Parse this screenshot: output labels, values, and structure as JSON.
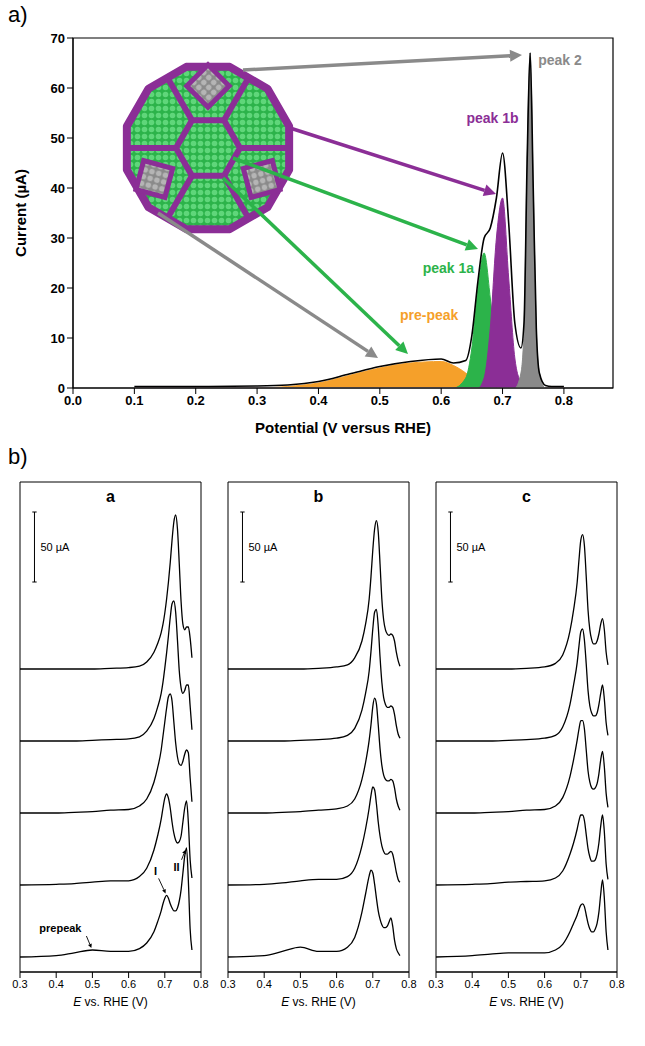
{
  "group_label": "b)",
  "chart_data": [
    {
      "type": "area",
      "panel_label": "a)",
      "x_label": "Potential (V versus RHE)",
      "y_label": "Current (µA)",
      "xlim": [
        0,
        0.88
      ],
      "xticks": [
        {
          "value": 0,
          "label": "0.0"
        },
        0.1,
        0.2,
        0.3,
        0.4,
        0.5,
        0.6,
        0.7,
        0.8
      ],
      "ylim": [
        0,
        70
      ],
      "yticks": [
        0,
        10,
        20,
        30,
        40,
        50,
        60,
        70
      ],
      "x": [
        0.1,
        0.2,
        0.3,
        0.35,
        0.4,
        0.45,
        0.5,
        0.55,
        0.6,
        0.62,
        0.64,
        0.65,
        0.66,
        0.67,
        0.68,
        0.69,
        0.7,
        0.71,
        0.72,
        0.73,
        0.735,
        0.74,
        0.745,
        0.75,
        0.755,
        0.76,
        0.77,
        0.78,
        0.8
      ],
      "series": [
        {
          "name": "pre-peak",
          "type": "area",
          "color": "#f5a02a",
          "values": [
            0,
            0,
            0,
            0.3,
            1,
            2.5,
            4,
            5,
            5.3,
            4.5,
            3,
            2,
            1,
            0.5,
            0,
            0,
            0,
            0,
            0,
            0,
            0,
            0,
            0,
            0,
            0,
            0,
            0,
            0,
            0
          ]
        },
        {
          "name": "peak 1a",
          "type": "area",
          "color": "#2cb34a",
          "values": [
            0,
            0,
            0,
            0,
            0,
            0,
            0,
            0,
            0,
            0,
            2,
            8,
            20,
            27,
            18,
            6,
            1,
            0,
            0,
            0,
            0,
            0,
            0,
            0,
            0,
            0,
            0,
            0,
            0
          ]
        },
        {
          "name": "peak 1b",
          "type": "area",
          "color": "#8b2e96",
          "values": [
            0,
            0,
            0,
            0,
            0,
            0,
            0,
            0,
            0,
            0,
            0,
            0,
            0,
            2,
            12,
            30,
            38,
            22,
            6,
            1,
            0,
            0,
            0,
            0,
            0,
            0,
            0,
            0,
            0
          ]
        },
        {
          "name": "peak 2",
          "type": "area",
          "color": "#8a8a8a",
          "values": [
            0,
            0,
            0,
            0,
            0,
            0,
            0,
            0,
            0,
            0,
            0,
            0,
            0,
            0,
            0,
            0,
            0,
            0,
            0,
            3,
            12,
            45,
            67,
            40,
            12,
            3,
            0,
            0,
            0
          ]
        },
        {
          "type": "line",
          "color": "#000000",
          "values": [
            0.3,
            0.3,
            0.4,
            0.6,
            1.3,
            2.8,
            4.3,
            5.3,
            5.8,
            5,
            5.5,
            10.5,
            21.5,
            30,
            32,
            38,
            47,
            33,
            13,
            8,
            13,
            45,
            67,
            40,
            12,
            3,
            0.5,
            0.3,
            0.3
          ]
        }
      ]
    },
    {
      "type": "line",
      "panel_label": "a",
      "x_label": "E vs. RHE (V)",
      "tick_labels": "x",
      "xlim": [
        0.3,
        0.8
      ],
      "xticks": [
        0.3,
        0.4,
        0.5,
        0.6,
        0.7,
        0.8
      ],
      "scale_bar": {
        "value": 50,
        "label": "50 µA"
      },
      "annotations": [
        {
          "text": "prepeak",
          "x": 0.5,
          "y": 5
        },
        {
          "text": "I",
          "x": 0.705,
          "y": 44
        },
        {
          "text": "II",
          "x": 0.76,
          "y": 78
        }
      ],
      "x": [
        0.3,
        0.4,
        0.45,
        0.5,
        0.55,
        0.6,
        0.63,
        0.65,
        0.67,
        0.68,
        0.69,
        0.695,
        0.7,
        0.705,
        0.71,
        0.715,
        0.72,
        0.725,
        0.73,
        0.735,
        0.74,
        0.745,
        0.75,
        0.755,
        0.76,
        0.765,
        0.77,
        0.775
      ],
      "series": [
        {
          "color": "#000000",
          "values": [
            0,
            1,
            3,
            5,
            4,
            4,
            6,
            10,
            18,
            25,
            33,
            38,
            42,
            44,
            42,
            38,
            35,
            33,
            33,
            35,
            40,
            48,
            60,
            72,
            78,
            55,
            20,
            5
          ]
        },
        {
          "color": "#000000",
          "values": [
            0,
            0.5,
            1,
            2,
            3,
            3,
            6,
            12,
            25,
            35,
            47,
            55,
            62,
            65,
            62,
            55,
            45,
            37,
            32,
            30,
            31,
            35,
            45,
            55,
            60,
            45,
            18,
            5
          ]
        },
        {
          "color": "#000000",
          "values": [
            0,
            0,
            0.5,
            1,
            2,
            2.5,
            5,
            10,
            22,
            32,
            45,
            55,
            65,
            75,
            83,
            85,
            80,
            65,
            50,
            40,
            35,
            34,
            37,
            42,
            45,
            43,
            25,
            8
          ]
        },
        {
          "color": "#000000",
          "values": [
            0,
            0,
            0,
            0.5,
            1,
            1.5,
            3,
            7,
            16,
            24,
            34,
            42,
            52,
            63,
            75,
            88,
            98,
            100,
            92,
            72,
            50,
            38,
            34,
            36,
            40,
            40,
            25,
            8
          ]
        },
        {
          "color": "#000000",
          "values": [
            0,
            0,
            0,
            0,
            0.5,
            1,
            2,
            5,
            12,
            18,
            26,
            32,
            40,
            50,
            62,
            76,
            92,
            105,
            110,
            100,
            75,
            48,
            32,
            28,
            30,
            30,
            22,
            8
          ]
        }
      ]
    },
    {
      "type": "line",
      "panel_label": "b",
      "x_label": "E vs. RHE (V)",
      "tick_labels": "x",
      "xlim": [
        0.3,
        0.8
      ],
      "xticks": [
        0.3,
        0.4,
        0.5,
        0.6,
        0.7,
        0.8
      ],
      "scale_bar": {
        "value": 50,
        "label": "50 µA"
      },
      "x": [
        0.3,
        0.4,
        0.45,
        0.5,
        0.55,
        0.6,
        0.63,
        0.65,
        0.67,
        0.68,
        0.69,
        0.695,
        0.7,
        0.705,
        0.71,
        0.715,
        0.72,
        0.725,
        0.73,
        0.735,
        0.74,
        0.745,
        0.75,
        0.755,
        0.76,
        0.765,
        0.77,
        0.775
      ],
      "series": [
        {
          "color": "#000000",
          "values": [
            0,
            1,
            4,
            7,
            4,
            4,
            7,
            14,
            32,
            45,
            58,
            62,
            60,
            52,
            42,
            33,
            27,
            23,
            21,
            21,
            22,
            25,
            28,
            22,
            12,
            6,
            3,
            1
          ]
        },
        {
          "color": "#000000",
          "values": [
            0,
            0.5,
            1.5,
            3,
            4,
            4,
            6,
            12,
            28,
            40,
            55,
            64,
            70,
            68,
            58,
            45,
            35,
            28,
            24,
            22,
            22,
            23,
            24,
            22,
            16,
            9,
            4,
            2
          ]
        },
        {
          "color": "#000000",
          "values": [
            0,
            0,
            0.5,
            1,
            2,
            3,
            5,
            10,
            24,
            36,
            52,
            63,
            76,
            82,
            78,
            63,
            46,
            34,
            27,
            24,
            23,
            23,
            24,
            23,
            18,
            10,
            5,
            2
          ]
        },
        {
          "color": "#000000",
          "values": [
            0,
            0,
            0,
            0.5,
            1,
            2,
            4,
            9,
            22,
            34,
            50,
            64,
            80,
            92,
            94,
            82,
            60,
            42,
            31,
            26,
            24,
            24,
            25,
            24,
            19,
            11,
            5,
            2
          ]
        },
        {
          "color": "#000000",
          "values": [
            0,
            0,
            0,
            0,
            0.5,
            1.5,
            3,
            8,
            20,
            32,
            50,
            66,
            85,
            100,
            106,
            98,
            75,
            50,
            35,
            28,
            25,
            24,
            25,
            24,
            20,
            12,
            6,
            2
          ]
        }
      ]
    },
    {
      "type": "line",
      "panel_label": "c",
      "x_label": "E vs. RHE (V)",
      "tick_labels": "x",
      "xlim": [
        0.3,
        0.8
      ],
      "xticks": [
        0.3,
        0.4,
        0.5,
        0.6,
        0.7,
        0.8
      ],
      "scale_bar": {
        "value": 50,
        "label": "50 µA"
      },
      "x": [
        0.3,
        0.4,
        0.45,
        0.5,
        0.55,
        0.6,
        0.63,
        0.65,
        0.67,
        0.68,
        0.69,
        0.695,
        0.7,
        0.705,
        0.71,
        0.715,
        0.72,
        0.725,
        0.73,
        0.735,
        0.74,
        0.745,
        0.75,
        0.755,
        0.76,
        0.765,
        0.77,
        0.775
      ],
      "series": [
        {
          "color": "#000000",
          "values": [
            0,
            1,
            2,
            3,
            3,
            3,
            5,
            9,
            18,
            24,
            30,
            34,
            37,
            38,
            36,
            30,
            24,
            20,
            18,
            18,
            20,
            24,
            32,
            45,
            55,
            42,
            18,
            5
          ]
        },
        {
          "color": "#000000",
          "values": [
            0,
            0.5,
            1,
            2,
            2.5,
            3,
            5,
            10,
            22,
            30,
            40,
            46,
            50,
            50,
            46,
            36,
            26,
            20,
            17,
            17,
            18,
            22,
            30,
            42,
            50,
            38,
            15,
            4
          ]
        },
        {
          "color": "#000000",
          "values": [
            0,
            0,
            0.5,
            1,
            2,
            2.5,
            5,
            11,
            26,
            38,
            52,
            60,
            66,
            66,
            60,
            45,
            30,
            22,
            18,
            17,
            18,
            21,
            28,
            38,
            44,
            33,
            14,
            4
          ]
        },
        {
          "color": "#000000",
          "values": [
            0,
            0,
            0,
            0.5,
            1,
            2,
            4,
            10,
            26,
            40,
            56,
            68,
            78,
            80,
            72,
            55,
            36,
            25,
            20,
            18,
            18,
            20,
            26,
            34,
            40,
            30,
            13,
            4
          ]
        },
        {
          "color": "#000000",
          "values": [
            0,
            0,
            0,
            0,
            0.5,
            1.5,
            4,
            10,
            27,
            42,
            62,
            78,
            92,
            96,
            88,
            66,
            42,
            28,
            21,
            18,
            18,
            20,
            25,
            32,
            36,
            28,
            12,
            3
          ]
        }
      ]
    }
  ]
}
